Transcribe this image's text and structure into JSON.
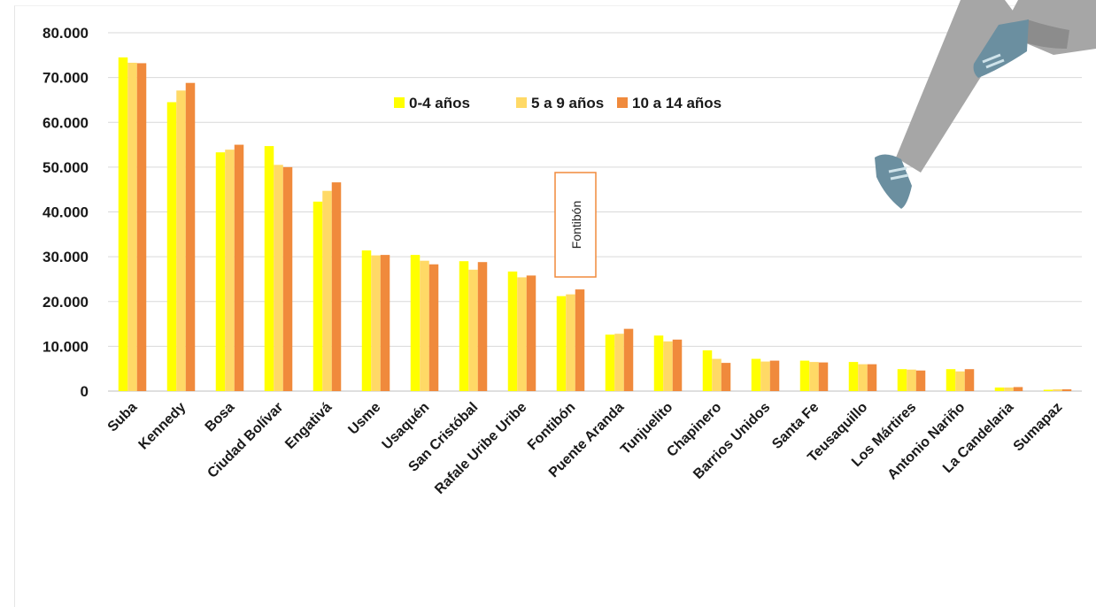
{
  "chart_data": {
    "type": "bar",
    "categories": [
      "Suba",
      "Kennedy",
      "Bosa",
      "Ciudad Bolívar",
      "Engativá",
      "Usme",
      "Usaquén",
      "San Cristóbal",
      "Rafale Uribe Uribe",
      "Fontibón",
      "Puente  Aranda",
      "Tunjuelito",
      "Chapinero",
      "Barrios Unidos",
      "Santa Fe",
      "Teusaquillo",
      "Los Mártires",
      "Antonio Nariño",
      "La Candelaria",
      "Sumapaz"
    ],
    "series": [
      {
        "name": "0-4 años",
        "color": "#ffff00",
        "values": [
          74500,
          64500,
          53300,
          54700,
          42300,
          31400,
          30400,
          29000,
          26700,
          21200,
          12600,
          12400,
          9100,
          7200,
          6800,
          6500,
          4900,
          4900,
          800,
          300
        ]
      },
      {
        "name": "5 a 9 años",
        "color": "#ffd966",
        "values": [
          73300,
          67100,
          53900,
          50500,
          44700,
          30300,
          29100,
          27100,
          25400,
          21600,
          12800,
          11100,
          7200,
          6600,
          6500,
          6000,
          4800,
          4400,
          800,
          400
        ]
      },
      {
        "name": "10 a 14 años",
        "color": "#f08a3c",
        "values": [
          73200,
          68800,
          55000,
          50000,
          46600,
          30400,
          28300,
          28800,
          25800,
          22700,
          13900,
          11500,
          6300,
          6800,
          6400,
          6000,
          4600,
          4900,
          900,
          400
        ]
      }
    ],
    "ylim": [
      0,
      80000
    ],
    "yticks": [
      "0",
      "10.000",
      "20.000",
      "30.000",
      "40.000",
      "50.000",
      "60.000",
      "70.000",
      "80.000"
    ],
    "grid": true,
    "legend_position": "top-center",
    "annotation": {
      "text": "Fontibón",
      "category": "Fontibón"
    }
  }
}
